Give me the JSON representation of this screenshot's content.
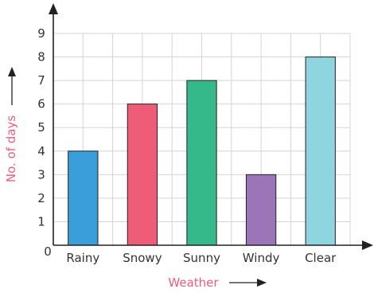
{
  "chart_data": {
    "type": "bar",
    "categories": [
      "Rainy",
      "Snowy",
      "Sunny",
      "Windy",
      "Clear"
    ],
    "values": [
      4,
      6,
      7,
      3,
      8
    ],
    "bar_colors": [
      "#3a9fd9",
      "#ef5c78",
      "#35b98a",
      "#9b75b7",
      "#8fd5df"
    ],
    "xlabel": "Weather",
    "ylabel": "No. of days",
    "ylim": [
      0,
      9
    ],
    "yticks": [
      "0",
      "1",
      "2",
      "3",
      "4",
      "5",
      "6",
      "7",
      "8",
      "9"
    ],
    "grid": true,
    "label_color": "#ee5d7d"
  }
}
